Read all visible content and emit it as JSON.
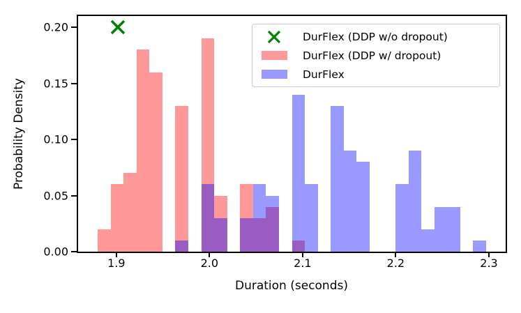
{
  "figure": {
    "background": "#ffffff",
    "text_color": "#000000"
  },
  "legend": {
    "items": [
      {
        "label": "DurFlex (DDP w/o dropout)",
        "handle": "x-marker",
        "color": "#008000"
      },
      {
        "label": "DurFlex (DDP w/ dropout)",
        "handle": "patch",
        "color": "rgba(255,0,0,0.4)"
      },
      {
        "label": "DurFlex",
        "handle": "patch",
        "color": "rgba(0,0,255,0.4)"
      }
    ]
  },
  "chart_data": {
    "type": "bar",
    "subtype": "overlapping-histograms",
    "title": "",
    "xlabel": "Duration (seconds)",
    "ylabel": "Probability Density",
    "xlim": [
      1.859,
      2.318
    ],
    "ylim": [
      0,
      0.21
    ],
    "xticks": [
      1.9,
      2.0,
      2.1,
      2.2,
      2.3
    ],
    "xtick_labels": [
      "1.9",
      "2.0",
      "2.1",
      "2.2",
      "2.3"
    ],
    "yticks": [
      0.0,
      0.05,
      0.1,
      0.15,
      0.2
    ],
    "ytick_labels": [
      "0.00",
      "0.05",
      "0.10",
      "0.15",
      "0.20"
    ],
    "grid": false,
    "legend_position": "upper right",
    "bin_width": 0.0139,
    "bin_start": 1.88,
    "bin_end": 2.297,
    "series": [
      {
        "name": "DurFlex (DDP w/ dropout)",
        "color": "rgba(255,0,0,0.4)",
        "bins": [
          [
            1.88,
            0.02
          ],
          [
            1.8939,
            0.06
          ],
          [
            1.9078,
            0.07
          ],
          [
            1.9217,
            0.18
          ],
          [
            1.9356,
            0.16
          ],
          [
            1.9634,
            0.13
          ],
          [
            1.9912,
            0.19
          ],
          [
            2.0051,
            0.05
          ],
          [
            2.0329,
            0.06
          ],
          [
            2.0468,
            0.03
          ],
          [
            2.0607,
            0.04
          ],
          [
            2.0885,
            0.01
          ]
        ]
      },
      {
        "name": "DurFlex",
        "color": "rgba(0,0,255,0.4)",
        "bins": [
          [
            1.9634,
            0.01
          ],
          [
            1.9912,
            0.06
          ],
          [
            2.0051,
            0.03
          ],
          [
            2.0329,
            0.03
          ],
          [
            2.0468,
            0.06
          ],
          [
            2.0607,
            0.05
          ],
          [
            2.0885,
            0.14
          ],
          [
            2.1024,
            0.06
          ],
          [
            2.1302,
            0.13
          ],
          [
            2.1441,
            0.09
          ],
          [
            2.158,
            0.08
          ],
          [
            2.1997,
            0.06
          ],
          [
            2.2136,
            0.09
          ],
          [
            2.2275,
            0.02
          ],
          [
            2.2414,
            0.04
          ],
          [
            2.2553,
            0.04
          ],
          [
            2.2831,
            0.01
          ]
        ]
      }
    ],
    "marker_point": {
      "name": "DurFlex (DDP w/o dropout)",
      "x": 1.902,
      "y": 0.2,
      "shape": "x",
      "color": "#008000"
    }
  }
}
